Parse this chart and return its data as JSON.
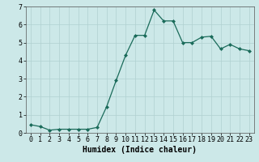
{
  "x": [
    0,
    1,
    2,
    3,
    4,
    5,
    6,
    7,
    8,
    9,
    10,
    11,
    12,
    13,
    14,
    15,
    16,
    17,
    18,
    19,
    20,
    21,
    22,
    23
  ],
  "y": [
    0.45,
    0.35,
    0.15,
    0.2,
    0.2,
    0.2,
    0.2,
    0.3,
    1.45,
    2.9,
    4.3,
    5.4,
    5.4,
    6.8,
    6.2,
    6.2,
    5.0,
    5.0,
    5.3,
    5.35,
    4.65,
    4.9,
    4.65,
    4.55
  ],
  "xlabel": "Humidex (Indice chaleur)",
  "xlim": [
    -0.5,
    23.5
  ],
  "ylim": [
    0,
    7
  ],
  "yticks": [
    0,
    1,
    2,
    3,
    4,
    5,
    6,
    7
  ],
  "xticks": [
    0,
    1,
    2,
    3,
    4,
    5,
    6,
    7,
    8,
    9,
    10,
    11,
    12,
    13,
    14,
    15,
    16,
    17,
    18,
    19,
    20,
    21,
    22,
    23
  ],
  "line_color": "#1a6b5a",
  "marker": "D",
  "marker_size": 2.0,
  "bg_color": "#cce8e8",
  "grid_color": "#b0d0d0",
  "xlabel_fontsize": 7,
  "tick_fontsize": 6,
  "linewidth": 0.9
}
